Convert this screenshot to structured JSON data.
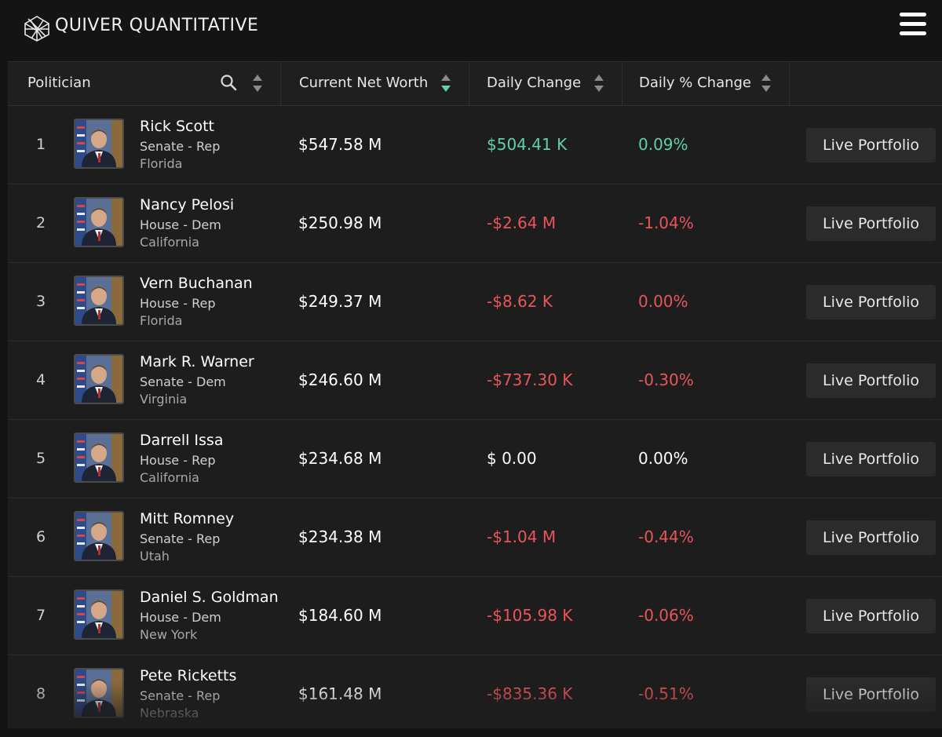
{
  "header": {
    "brand_name": "QUIVER QUANTITATIVE",
    "logo_icon": "cube-lattice-logo",
    "menu_icon": "hamburger-menu-icon"
  },
  "table": {
    "columns": {
      "politician": "Politician",
      "net_worth": "Current Net Worth",
      "daily_change": "Daily Change",
      "daily_pct_change": "Daily % Change"
    },
    "sort_active_column": "net_worth",
    "sort_active_direction": "descending",
    "rows": [
      {
        "rank": "1",
        "name": "Rick Scott",
        "chamber": "Senate - Rep",
        "state": "Florida",
        "net_worth": "$547.58 M",
        "daily_change": "$504.41 K",
        "daily_pct": "0.09%",
        "trend": "positive",
        "action": "Live Portfolio"
      },
      {
        "rank": "2",
        "name": "Nancy Pelosi",
        "chamber": "House - Dem",
        "state": "California",
        "net_worth": "$250.98 M",
        "daily_change": "-$2.64 M",
        "daily_pct": "-1.04%",
        "trend": "negative",
        "action": "Live Portfolio"
      },
      {
        "rank": "3",
        "name": "Vern Buchanan",
        "chamber": "House - Rep",
        "state": "Florida",
        "net_worth": "$249.37 M",
        "daily_change": "-$8.62 K",
        "daily_pct": "0.00%",
        "trend": "negative",
        "action": "Live Portfolio"
      },
      {
        "rank": "4",
        "name": "Mark R. Warner",
        "chamber": "Senate - Dem",
        "state": "Virginia",
        "net_worth": "$246.60 M",
        "daily_change": "-$737.30 K",
        "daily_pct": "-0.30%",
        "trend": "negative",
        "action": "Live Portfolio"
      },
      {
        "rank": "5",
        "name": "Darrell Issa",
        "chamber": "House - Rep",
        "state": "California",
        "net_worth": "$234.68 M",
        "daily_change": "$ 0.00",
        "daily_pct": "0.00%",
        "trend": "neutral",
        "action": "Live Portfolio"
      },
      {
        "rank": "6",
        "name": "Mitt Romney",
        "chamber": "Senate - Rep",
        "state": "Utah",
        "net_worth": "$234.38 M",
        "daily_change": "-$1.04 M",
        "daily_pct": "-0.44%",
        "trend": "negative",
        "action": "Live Portfolio"
      },
      {
        "rank": "7",
        "name": "Daniel S. Goldman",
        "chamber": "House - Dem",
        "state": "New York",
        "net_worth": "$184.60 M",
        "daily_change": "-$105.98 K",
        "daily_pct": "-0.06%",
        "trend": "negative",
        "action": "Live Portfolio"
      },
      {
        "rank": "8",
        "name": "Pete Ricketts",
        "chamber": "Senate - Rep",
        "state": "Nebraska",
        "net_worth": "$161.48 M",
        "daily_change": "-$835.36 K",
        "daily_pct": "-0.51%",
        "trend": "negative",
        "action": "Live Portfolio"
      }
    ]
  },
  "colors": {
    "background": "#141414",
    "table_background": "#1d1d1d",
    "positive": "#5fd1a8",
    "negative": "#e8565a",
    "sort_active": "#5fd1a8",
    "button_background": "#2b2b2b"
  }
}
